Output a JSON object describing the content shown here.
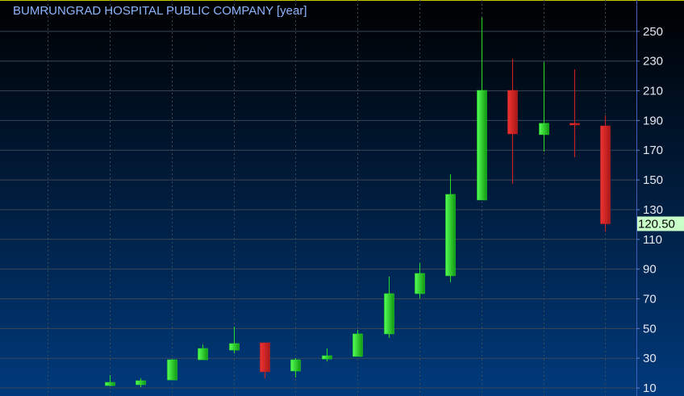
{
  "chart_data": {
    "type": "candlestick",
    "title": "BUMRUNGRAD HOSPITAL PUBLIC COMPANY [year]",
    "categories": [
      null,
      null,
      null,
      null,
      null,
      null,
      null,
      null,
      null,
      null,
      null,
      null,
      null,
      null,
      null,
      null,
      null
    ],
    "open": [
      11.6,
      12.2,
      15.4,
      29.0,
      35.5,
      40.4,
      21.4,
      29.5,
      31.2,
      46.4,
      73.5,
      85.5,
      136.5,
      210.3,
      180.5,
      188.1,
      186.4
    ],
    "high": [
      18.7,
      16.5,
      29.5,
      39.3,
      51.3,
      40.4,
      30.1,
      36.6,
      49.1,
      84.9,
      94.1,
      153.9,
      259.2,
      231.5,
      229.3,
      224.4,
      193.5
    ],
    "low": [
      11.1,
      10.5,
      15.4,
      29.0,
      33.3,
      16.5,
      17.1,
      27.9,
      31.2,
      43.7,
      70.3,
      81.1,
      136.5,
      147.4,
      169.1,
      165.3,
      115.3
    ],
    "close": [
      13.8,
      14.9,
      29.0,
      36.6,
      39.9,
      20.9,
      29.0,
      31.7,
      46.4,
      73.5,
      87.1,
      140.3,
      210.3,
      181.0,
      188.1,
      187.0,
      120.5
    ],
    "up_color": "#22e022",
    "down_color": "#d42222",
    "last_price": {
      "value": 120.5,
      "label": "120.50"
    },
    "ylim": [
      4.6,
      271.1
    ],
    "yticks": [
      10,
      30,
      50,
      70,
      90,
      110,
      130,
      150,
      170,
      190,
      210,
      230,
      250
    ],
    "grid": true
  }
}
